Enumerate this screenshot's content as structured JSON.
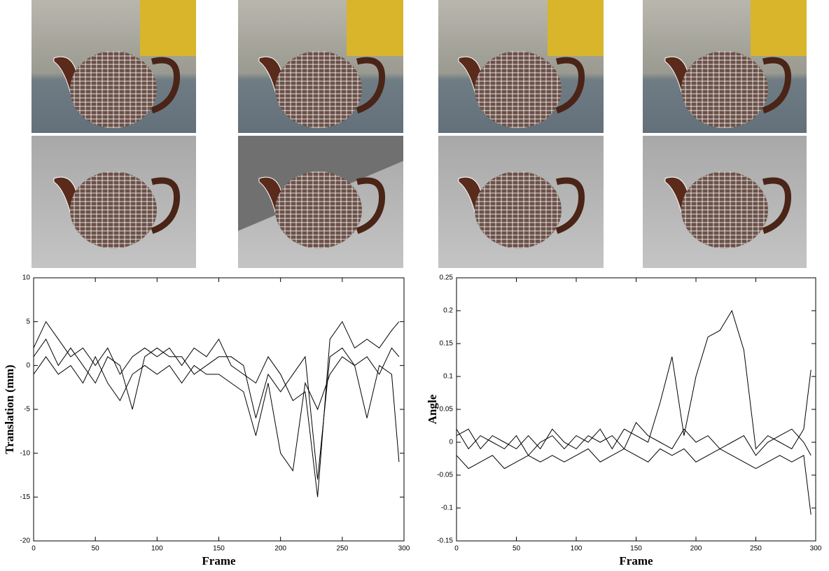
{
  "chart_data": [
    {
      "type": "line",
      "y_label": "Translation (mm)",
      "x_label": "Frame",
      "x": [
        0,
        10,
        20,
        30,
        40,
        50,
        60,
        70,
        80,
        90,
        100,
        110,
        120,
        130,
        140,
        150,
        160,
        170,
        180,
        190,
        200,
        210,
        220,
        230,
        240,
        250,
        260,
        270,
        280,
        290,
        296
      ],
      "xlim": [
        0,
        300
      ],
      "xticks": [
        0,
        50,
        100,
        150,
        200,
        250,
        300
      ],
      "ylim": [
        -20,
        10
      ],
      "yticks": [
        -20,
        -15,
        -10,
        -5,
        0,
        5,
        10
      ],
      "series": [
        {
          "color": "#000000",
          "values": [
            2,
            5,
            3,
            1,
            2,
            0,
            2,
            -1,
            1,
            2,
            1,
            2,
            0,
            2,
            1,
            3,
            0,
            -1,
            -2,
            1,
            -1,
            -4,
            -3,
            -15,
            3,
            5,
            2,
            3,
            2,
            4,
            5
          ]
        },
        {
          "color": "#000000",
          "values": [
            -1,
            1,
            -1,
            0,
            -2,
            1,
            -2,
            -4,
            -1,
            0,
            -1,
            0,
            -2,
            0,
            -1,
            -1,
            -2,
            -3,
            -8,
            -2,
            -10,
            -12,
            -2,
            -5,
            -1,
            1,
            0,
            -6,
            0,
            -1,
            -11
          ]
        },
        {
          "color": "#000000",
          "values": [
            1,
            3,
            0,
            2,
            0,
            -2,
            1,
            0,
            -5,
            1,
            2,
            1,
            1,
            -1,
            0,
            1,
            1,
            0,
            -6,
            -1,
            -3,
            -1,
            1,
            -13,
            1,
            2,
            0,
            1,
            -1,
            2,
            1
          ]
        }
      ]
    },
    {
      "type": "line",
      "y_label": "Angle",
      "x_label": "Frame",
      "x": [
        0,
        10,
        20,
        30,
        40,
        50,
        60,
        70,
        80,
        90,
        100,
        110,
        120,
        130,
        140,
        150,
        160,
        170,
        180,
        190,
        200,
        210,
        220,
        230,
        240,
        250,
        260,
        270,
        280,
        290,
        296
      ],
      "xlim": [
        0,
        300
      ],
      "xticks": [
        0,
        50,
        100,
        150,
        200,
        250,
        300
      ],
      "ylim": [
        -0.15,
        0.25
      ],
      "yticks": [
        -0.15,
        -0.1,
        -0.05,
        0,
        0.05,
        0.1,
        0.15,
        0.2,
        0.25
      ],
      "series": [
        {
          "color": "#000000",
          "values": [
            0.02,
            -0.01,
            0.01,
            0,
            -0.01,
            0.01,
            -0.02,
            0,
            0.01,
            -0.01,
            0.01,
            0,
            0.02,
            -0.01,
            0.02,
            0.01,
            0,
            0.06,
            0.13,
            0.01,
            0.1,
            0.16,
            0.17,
            0.2,
            0.14,
            -0.01,
            0.01,
            0,
            -0.01,
            0.02,
            0.11
          ]
        },
        {
          "color": "#000000",
          "values": [
            -0.02,
            -0.04,
            -0.03,
            -0.02,
            -0.04,
            -0.03,
            -0.02,
            -0.03,
            -0.02,
            -0.03,
            -0.02,
            -0.01,
            -0.03,
            -0.02,
            -0.01,
            -0.02,
            -0.03,
            -0.01,
            -0.02,
            -0.01,
            -0.03,
            -0.02,
            -0.01,
            -0.02,
            -0.03,
            -0.04,
            -0.03,
            -0.02,
            -0.03,
            -0.02,
            -0.11
          ]
        },
        {
          "color": "#000000",
          "values": [
            0.01,
            0.02,
            -0.01,
            0.01,
            0,
            -0.01,
            0.01,
            -0.01,
            0.02,
            0,
            -0.01,
            0.01,
            0,
            0.01,
            -0.01,
            0.03,
            0.01,
            0,
            -0.01,
            0.02,
            0,
            0.01,
            -0.01,
            0,
            0.01,
            -0.02,
            0,
            0.01,
            0.02,
            0,
            -0.02
          ]
        }
      ]
    }
  ]
}
